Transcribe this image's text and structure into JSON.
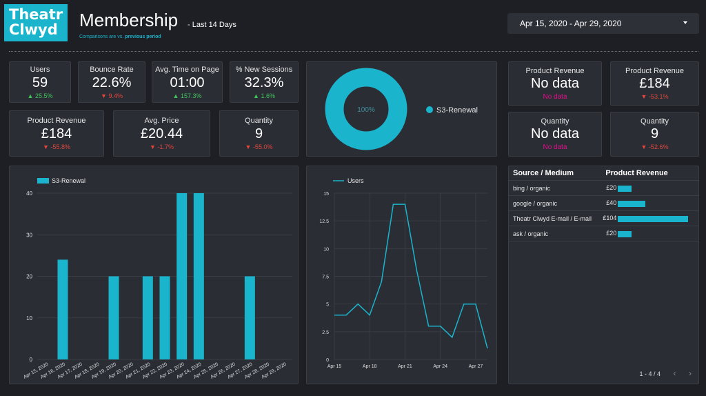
{
  "header": {
    "logo": [
      "Theatr",
      "Clwyd"
    ],
    "title": "Membership",
    "subtitle": "- Last 14 Days",
    "compare_prefix": "Comparisons are vs.",
    "compare_link": "previous period",
    "date_range": "Apr 15, 2020 - Apr 29, 2020"
  },
  "scorecards": [
    {
      "label": "Users",
      "value": "59",
      "change": "▲ 25.5%",
      "dir": "up"
    },
    {
      "label": "Bounce Rate",
      "value": "22.6%",
      "change": "▼ 9.4%",
      "dir": "down"
    },
    {
      "label": "Avg. Time on Page",
      "value": "01:00",
      "change": "▲ 157.3%",
      "dir": "up"
    },
    {
      "label": "% New Sessions",
      "value": "32.3%",
      "change": "▲ 1.6%",
      "dir": "up"
    },
    {
      "label": "Product Revenue",
      "value": "£184",
      "change": "▼ -55.8%",
      "dir": "down"
    },
    {
      "label": "Avg. Price",
      "value": "£20.44",
      "change": "▼ -1.7%",
      "dir": "down"
    },
    {
      "label": "Quantity",
      "value": "9",
      "change": "▼ -55.0%",
      "dir": "down"
    }
  ],
  "right_cards": [
    {
      "label": "Product Revenue",
      "value": "No data",
      "sub": "No data",
      "style": "pink"
    },
    {
      "label": "Product Revenue",
      "value": "£184",
      "sub": "▼ -53.1%",
      "style": "teal"
    },
    {
      "label": "Quantity",
      "value": "No data",
      "sub": "No data",
      "style": "pink"
    },
    {
      "label": "Quantity",
      "value": "9",
      "sub": "▼ -52.6%",
      "style": "teal"
    }
  ],
  "donut": {
    "center_label": "100%",
    "legend": "S3-Renewal",
    "color": "#1ab5cc"
  },
  "colors": {
    "accent": "#1ab5cc",
    "up": "#3ec35a",
    "down": "#e0463c",
    "pink": "#e0118b"
  },
  "chart_data": [
    {
      "type": "bar",
      "series": [
        {
          "name": "S3-Renewal",
          "values": [
            0,
            24,
            0,
            0,
            20,
            0,
            20,
            20,
            40,
            40,
            0,
            0,
            20,
            0,
            0
          ]
        }
      ],
      "categories": [
        "Apr 15, 2020",
        "Apr 16, 2020",
        "Apr 17, 2020",
        "Apr 18, 2020",
        "Apr 19, 2020",
        "Apr 20, 2020",
        "Apr 21, 2020",
        "Apr 22, 2020",
        "Apr 23, 2020",
        "Apr 24, 2020",
        "Apr 25, 2020",
        "Apr 26, 2020",
        "Apr 27, 2020",
        "Apr 28, 2020",
        "Apr 29, 2020"
      ],
      "ylim": [
        0,
        40
      ],
      "yticks": [
        "0",
        "10",
        "20",
        "30",
        "40"
      ],
      "legend": "top-left",
      "grid": true
    },
    {
      "type": "line",
      "series": [
        {
          "name": "Users",
          "values": [
            4,
            4,
            5,
            4,
            7,
            14,
            14,
            8,
            3,
            3,
            2,
            5,
            5,
            1
          ]
        }
      ],
      "ylim": [
        0,
        15
      ],
      "yticks": [
        "0",
        "2.5",
        "5",
        "7.5",
        "10",
        "12.5",
        "15"
      ],
      "xticks": [
        {
          "label": "Apr 15",
          "index": 0
        },
        {
          "label": "Apr 18",
          "index": 3
        },
        {
          "label": "Apr 21",
          "index": 6
        },
        {
          "label": "Apr 24",
          "index": 9
        },
        {
          "label": "Apr 27",
          "index": 12
        }
      ],
      "legend": "top-left",
      "grid": true
    }
  ],
  "source_table": {
    "headers": [
      "Source / Medium",
      "Product Revenue"
    ],
    "rows": [
      {
        "source": "bing / organic",
        "revenue": "£20",
        "value": 20
      },
      {
        "source": "google / organic",
        "revenue": "£40",
        "value": 40
      },
      {
        "source": "Theatr Clwyd E-mail / E-mail",
        "revenue": "£104",
        "value": 104
      },
      {
        "source": "ask / organic",
        "revenue": "£20",
        "value": 20
      }
    ],
    "pager": "1 - 4 / 4",
    "prev": "‹",
    "next": "›"
  }
}
